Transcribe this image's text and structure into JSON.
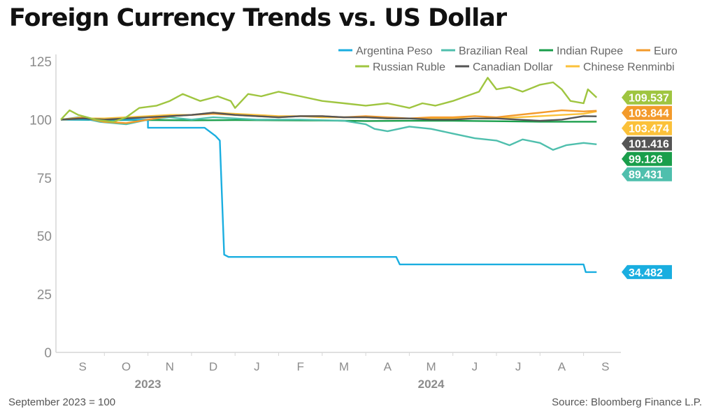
{
  "title": "Foreign Currency Trends vs. US Dollar",
  "footnote": "September 2023 = 100",
  "source": "Source: Bloomberg Finance L.P.",
  "chart_data": {
    "type": "line",
    "ylim": [
      0,
      125
    ],
    "yticks": [
      0,
      25,
      50,
      75,
      100,
      125
    ],
    "grid": false,
    "legend_position": "top-right",
    "month_labels": [
      "S",
      "O",
      "N",
      "D",
      "J",
      "F",
      "M",
      "A",
      "M",
      "J",
      "J",
      "A",
      "S"
    ],
    "year_labels": [
      {
        "label": "2023",
        "month_index": 1.5
      },
      {
        "label": "2024",
        "month_index": 8.0
      }
    ],
    "series": [
      {
        "name": "Argentina Peso",
        "color": "#1aaee0",
        "end_label": "34.482",
        "points": [
          [
            0,
            100
          ],
          [
            2.0,
            100
          ],
          [
            2.0,
            96.5
          ],
          [
            3.3,
            96.5
          ],
          [
            3.55,
            93
          ],
          [
            3.65,
            91
          ],
          [
            3.75,
            42
          ],
          [
            3.85,
            41
          ],
          [
            7.7,
            41
          ],
          [
            7.78,
            37.8
          ],
          [
            12.0,
            37.8
          ],
          [
            12.05,
            34.5
          ],
          [
            12.3,
            34.5
          ]
        ]
      },
      {
        "name": "Brazilian Real",
        "color": "#4fbfad",
        "end_label": "89.431",
        "points": [
          [
            0,
            100
          ],
          [
            0.4,
            101
          ],
          [
            0.9,
            99
          ],
          [
            1.5,
            98
          ],
          [
            2.0,
            100
          ],
          [
            2.5,
            101
          ],
          [
            3.0,
            100
          ],
          [
            3.5,
            101
          ],
          [
            4.5,
            100
          ],
          [
            5.5,
            100
          ],
          [
            6.5,
            99.5
          ],
          [
            7.0,
            98
          ],
          [
            7.2,
            96
          ],
          [
            7.5,
            95
          ],
          [
            8.0,
            97
          ],
          [
            8.5,
            96
          ],
          [
            9.0,
            94
          ],
          [
            9.5,
            92
          ],
          [
            10.0,
            91
          ],
          [
            10.3,
            89
          ],
          [
            10.6,
            91.5
          ],
          [
            11.0,
            90
          ],
          [
            11.3,
            87
          ],
          [
            11.6,
            89
          ],
          [
            12.0,
            90
          ],
          [
            12.3,
            89.4
          ]
        ]
      },
      {
        "name": "Indian Rupee",
        "color": "#1a9e4b",
        "end_label": "99.126",
        "points": [
          [
            0,
            100
          ],
          [
            1.0,
            99.8
          ],
          [
            2.0,
            99.8
          ],
          [
            3.0,
            99.7
          ],
          [
            4.0,
            99.8
          ],
          [
            5.0,
            99.7
          ],
          [
            6.0,
            99.6
          ],
          [
            7.0,
            99.4
          ],
          [
            8.0,
            99.5
          ],
          [
            9.0,
            99.5
          ],
          [
            10.0,
            99.3
          ],
          [
            11.0,
            99.1
          ],
          [
            12.3,
            99.1
          ]
        ]
      },
      {
        "name": "Euro",
        "color": "#f39a2b",
        "end_label": "103.844",
        "points": [
          [
            0,
            100
          ],
          [
            0.5,
            101
          ],
          [
            1.0,
            99
          ],
          [
            1.5,
            98.5
          ],
          [
            2.0,
            100
          ],
          [
            2.5,
            101.5
          ],
          [
            3.0,
            102
          ],
          [
            3.5,
            102.5
          ],
          [
            4.0,
            102
          ],
          [
            4.5,
            101.5
          ],
          [
            5.0,
            101
          ],
          [
            5.5,
            101.5
          ],
          [
            6.0,
            101.5
          ],
          [
            6.5,
            101
          ],
          [
            7.0,
            101.5
          ],
          [
            7.5,
            101
          ],
          [
            8.0,
            100.5
          ],
          [
            8.5,
            101
          ],
          [
            9.0,
            101
          ],
          [
            9.5,
            101.5
          ],
          [
            10.0,
            101
          ],
          [
            10.5,
            102
          ],
          [
            11.0,
            103
          ],
          [
            11.5,
            104
          ],
          [
            12.0,
            103.5
          ],
          [
            12.3,
            103.8
          ]
        ]
      },
      {
        "name": "Russian Ruble",
        "color": "#9fc540",
        "end_label": "109.537",
        "points": [
          [
            0,
            100
          ],
          [
            0.2,
            104
          ],
          [
            0.4,
            102
          ],
          [
            0.8,
            100
          ],
          [
            1.2,
            99
          ],
          [
            1.5,
            101
          ],
          [
            1.8,
            105
          ],
          [
            2.2,
            106
          ],
          [
            2.5,
            108
          ],
          [
            2.8,
            111
          ],
          [
            3.2,
            108
          ],
          [
            3.6,
            110
          ],
          [
            3.9,
            108
          ],
          [
            4.0,
            105
          ],
          [
            4.3,
            111
          ],
          [
            4.6,
            110
          ],
          [
            5.0,
            112
          ],
          [
            5.5,
            110
          ],
          [
            6.0,
            108
          ],
          [
            6.5,
            107
          ],
          [
            7.0,
            106
          ],
          [
            7.5,
            107
          ],
          [
            8.0,
            105
          ],
          [
            8.3,
            107
          ],
          [
            8.6,
            106
          ],
          [
            9.0,
            108
          ],
          [
            9.3,
            110
          ],
          [
            9.6,
            112
          ],
          [
            9.8,
            118
          ],
          [
            10.0,
            113
          ],
          [
            10.3,
            114
          ],
          [
            10.6,
            112
          ],
          [
            11.0,
            115
          ],
          [
            11.3,
            116
          ],
          [
            11.5,
            113
          ],
          [
            11.7,
            108
          ],
          [
            12.0,
            107
          ],
          [
            12.1,
            113
          ],
          [
            12.3,
            109.5
          ]
        ]
      },
      {
        "name": "Canadian Dollar",
        "color": "#555555",
        "end_label": "101.416",
        "points": [
          [
            0,
            100
          ],
          [
            0.5,
            100.5
          ],
          [
            1.0,
            100
          ],
          [
            1.5,
            100.5
          ],
          [
            2.0,
            101
          ],
          [
            2.5,
            101.5
          ],
          [
            3.0,
            102
          ],
          [
            3.5,
            103
          ],
          [
            4.0,
            102
          ],
          [
            4.5,
            101.5
          ],
          [
            5.0,
            101
          ],
          [
            5.5,
            101.5
          ],
          [
            6.0,
            101.5
          ],
          [
            6.5,
            101
          ],
          [
            7.0,
            101
          ],
          [
            7.5,
            100.5
          ],
          [
            8.0,
            100.5
          ],
          [
            8.5,
            100
          ],
          [
            9.0,
            100
          ],
          [
            9.5,
            100.5
          ],
          [
            10.0,
            100.5
          ],
          [
            10.5,
            100
          ],
          [
            11.0,
            99.5
          ],
          [
            11.5,
            100
          ],
          [
            12.0,
            101.5
          ],
          [
            12.3,
            101.4
          ]
        ]
      },
      {
        "name": "Chinese Renminbi",
        "color": "#fbc13a",
        "end_label": "103.474",
        "points": [
          [
            0,
            100
          ],
          [
            0.5,
            100.5
          ],
          [
            1.0,
            100.5
          ],
          [
            1.5,
            101
          ],
          [
            2.0,
            101.5
          ],
          [
            2.5,
            102
          ],
          [
            3.0,
            102
          ],
          [
            3.5,
            103
          ],
          [
            4.0,
            102.5
          ],
          [
            4.5,
            102
          ],
          [
            5.0,
            101.5
          ],
          [
            5.5,
            101.5
          ],
          [
            6.0,
            101
          ],
          [
            6.5,
            101
          ],
          [
            7.0,
            101
          ],
          [
            7.5,
            100.5
          ],
          [
            8.0,
            100.5
          ],
          [
            8.5,
            100.5
          ],
          [
            9.0,
            100.5
          ],
          [
            9.5,
            100.5
          ],
          [
            10.0,
            100.5
          ],
          [
            10.5,
            101
          ],
          [
            11.0,
            101.5
          ],
          [
            11.5,
            102
          ],
          [
            12.0,
            102.5
          ],
          [
            12.3,
            103.5
          ]
        ]
      }
    ]
  }
}
